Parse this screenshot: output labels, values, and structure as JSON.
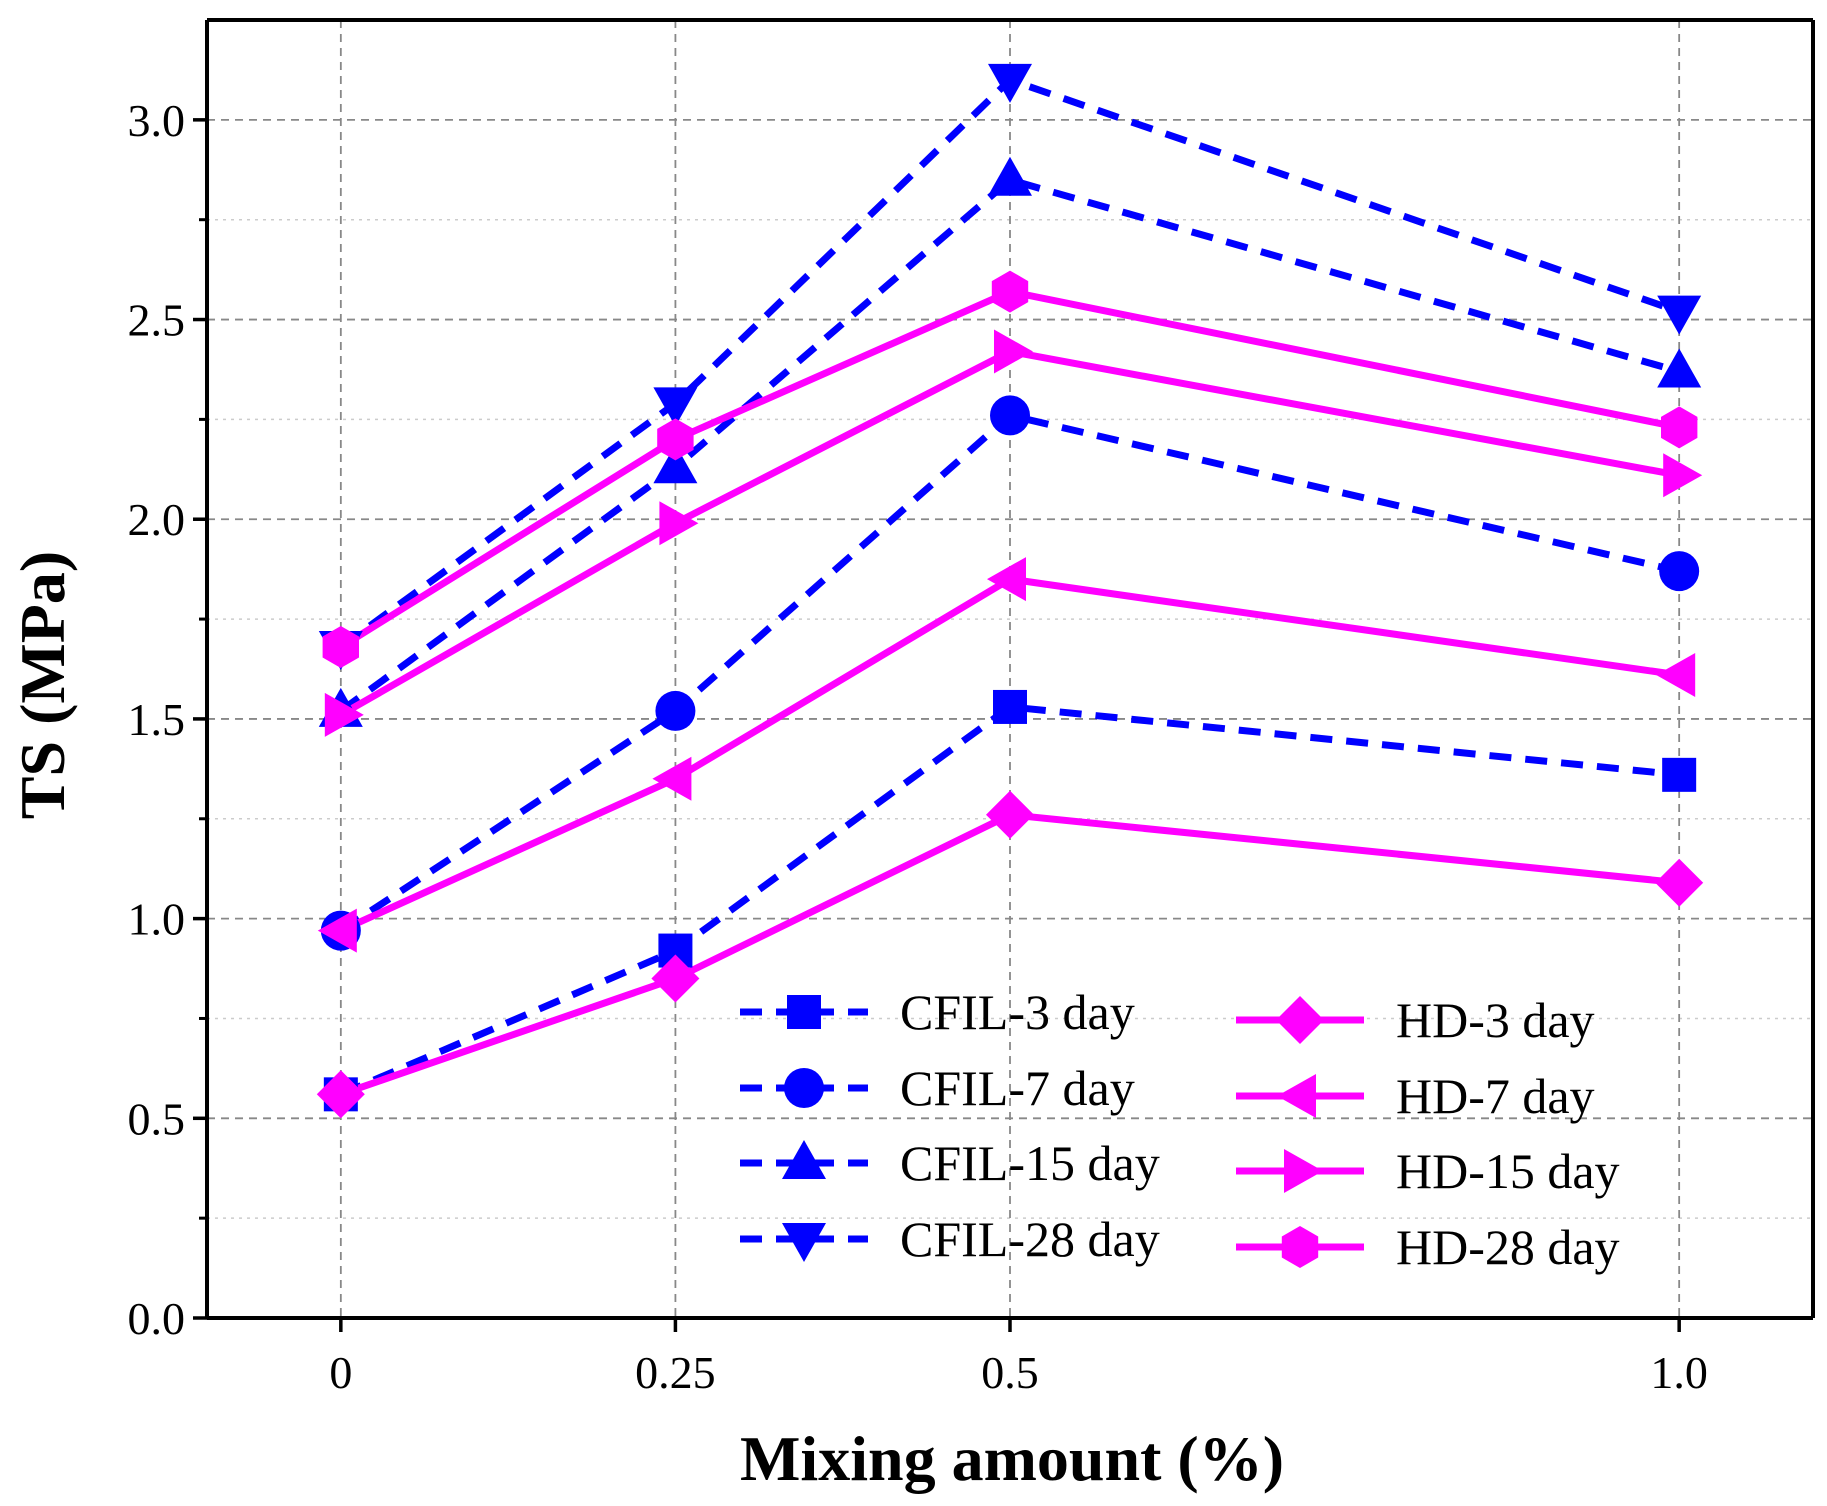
{
  "chart_data": {
    "type": "line",
    "title": "",
    "xlabel": "Mixing amount (%)",
    "ylabel": "TS (MPa)",
    "categories": [
      "0",
      "0.25",
      "0.5",
      "1.0"
    ],
    "x": [
      0,
      0.25,
      0.5,
      1.0
    ],
    "xlim": [
      -0.1,
      1.1
    ],
    "ylim": [
      0,
      3.25
    ],
    "yticks": [
      "0.0",
      "0.5",
      "1.0",
      "1.5",
      "2.0",
      "2.5",
      "3.0"
    ],
    "grid": true,
    "legend_position": "bottom-right",
    "series": [
      {
        "name": "CFIL-3 day",
        "values": [
          0.56,
          0.92,
          1.53,
          1.36
        ],
        "color": "#0000ff",
        "dash": "dashed",
        "marker": "square"
      },
      {
        "name": "CFIL-7 day",
        "values": [
          0.97,
          1.52,
          2.26,
          1.87
        ],
        "color": "#0000ff",
        "dash": "dashed",
        "marker": "circle"
      },
      {
        "name": "CFIL-15 day",
        "values": [
          1.52,
          2.13,
          2.85,
          2.37
        ],
        "color": "#0000ff",
        "dash": "dashed",
        "marker": "triangle-up"
      },
      {
        "name": "CFIL-28 day",
        "values": [
          1.68,
          2.29,
          3.1,
          2.52
        ],
        "color": "#0000ff",
        "dash": "dashed",
        "marker": "triangle-down"
      },
      {
        "name": "HD-3 day",
        "values": [
          0.56,
          0.85,
          1.26,
          1.09
        ],
        "color": "#ff00ff",
        "dash": "solid",
        "marker": "diamond"
      },
      {
        "name": "HD-7 day",
        "values": [
          0.97,
          1.35,
          1.85,
          1.61
        ],
        "color": "#ff00ff",
        "dash": "solid",
        "marker": "triangle-left"
      },
      {
        "name": "HD-15 day",
        "values": [
          1.51,
          1.99,
          2.42,
          2.11
        ],
        "color": "#ff00ff",
        "dash": "solid",
        "marker": "triangle-right"
      },
      {
        "name": "HD-28 day",
        "values": [
          1.68,
          2.2,
          2.57,
          2.23
        ],
        "color": "#ff00ff",
        "dash": "solid",
        "marker": "hexagon"
      }
    ]
  }
}
